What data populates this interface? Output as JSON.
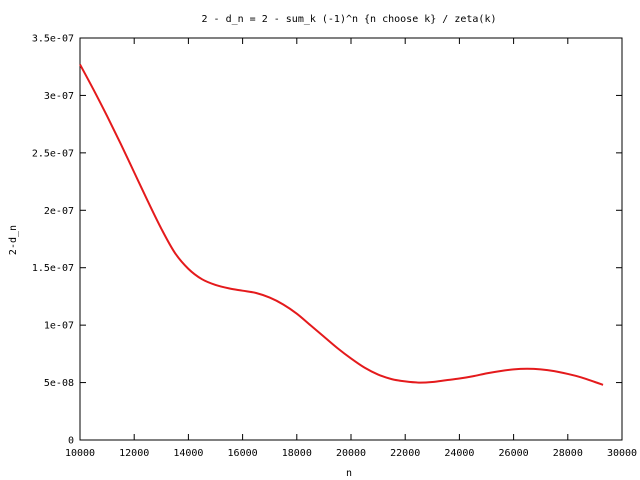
{
  "chart_data": {
    "type": "line",
    "title": "2 - d_n = 2 - sum_k (-1)^n {n choose k} / zeta(k)",
    "xlabel": "n",
    "ylabel": "2-d_n",
    "xlim": [
      10000,
      30000
    ],
    "ylim": [
      0,
      3.5e-07
    ],
    "grid": false,
    "legend": "none",
    "x_ticks": [
      {
        "value": 10000,
        "label": "10000"
      },
      {
        "value": 12000,
        "label": "12000"
      },
      {
        "value": 14000,
        "label": "14000"
      },
      {
        "value": 16000,
        "label": "16000"
      },
      {
        "value": 18000,
        "label": "18000"
      },
      {
        "value": 20000,
        "label": "20000"
      },
      {
        "value": 22000,
        "label": "22000"
      },
      {
        "value": 24000,
        "label": "24000"
      },
      {
        "value": 26000,
        "label": "26000"
      },
      {
        "value": 28000,
        "label": "28000"
      },
      {
        "value": 30000,
        "label": "30000"
      }
    ],
    "y_ticks": [
      {
        "value": 0,
        "label": "0"
      },
      {
        "value": 5e-08,
        "label": "5e-08"
      },
      {
        "value": 1e-07,
        "label": "1e-07"
      },
      {
        "value": 1.5e-07,
        "label": "1.5e-07"
      },
      {
        "value": 2e-07,
        "label": "2e-07"
      },
      {
        "value": 2.5e-07,
        "label": "2.5e-07"
      },
      {
        "value": 3e-07,
        "label": "3e-07"
      },
      {
        "value": 3.5e-07,
        "label": "3.5e-07"
      }
    ],
    "series": [
      {
        "color": "#e41a1c",
        "x": [
          10000,
          10500,
          11000,
          11500,
          12000,
          12500,
          13000,
          13500,
          14000,
          14500,
          15000,
          15500,
          16000,
          16500,
          17000,
          17500,
          18000,
          18500,
          19000,
          19500,
          20000,
          20500,
          21000,
          21500,
          22000,
          22500,
          23000,
          23500,
          24000,
          24500,
          25000,
          25500,
          26000,
          26500,
          27000,
          27500,
          28000,
          28500,
          29000,
          29300
        ],
        "y": [
          3.27e-07,
          3.05e-07,
          2.82e-07,
          2.58e-07,
          2.33e-07,
          2.08e-07,
          1.84e-07,
          1.63e-07,
          1.49e-07,
          1.4e-07,
          1.35e-07,
          1.32e-07,
          1.3e-07,
          1.28e-07,
          1.24e-07,
          1.18e-07,
          1.1e-07,
          1e-07,
          9e-08,
          8e-08,
          7.1e-08,
          6.3e-08,
          5.7e-08,
          5.3e-08,
          5.1e-08,
          5e-08,
          5.05e-08,
          5.2e-08,
          5.35e-08,
          5.55e-08,
          5.8e-08,
          6e-08,
          6.15e-08,
          6.2e-08,
          6.15e-08,
          6e-08,
          5.75e-08,
          5.45e-08,
          5.05e-08,
          4.8e-08
        ]
      }
    ]
  }
}
